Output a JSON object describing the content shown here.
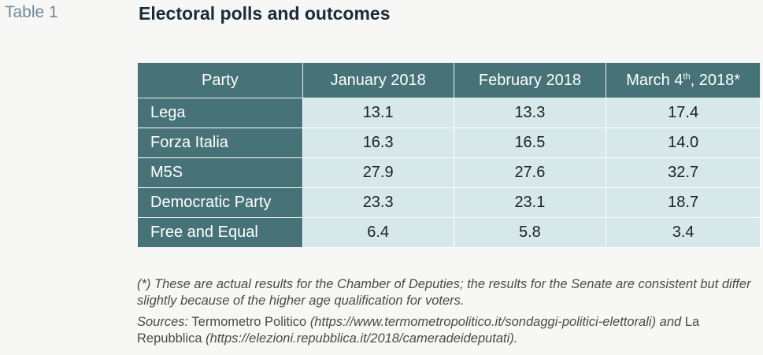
{
  "table_label": "Table 1",
  "title": "Electoral polls and outcomes",
  "table": {
    "headers": {
      "party": "Party",
      "jan": "January 2018",
      "feb": "February 2018",
      "mar_pre": "March 4",
      "mar_sup": "th",
      "mar_post": ", 2018*"
    },
    "rows": [
      {
        "party": "Lega",
        "jan": "13.1",
        "feb": "13.3",
        "mar": "17.4"
      },
      {
        "party": "Forza Italia",
        "jan": "16.3",
        "feb": "16.5",
        "mar": "14.0"
      },
      {
        "party": "M5S",
        "jan": "27.9",
        "feb": "27.6",
        "mar": "32.7"
      },
      {
        "party": "Democratic Party",
        "jan": "23.3",
        "feb": "23.1",
        "mar": "18.7"
      },
      {
        "party": "Free and Equal",
        "jan": "6.4",
        "feb": "5.8",
        "mar": "3.4"
      }
    ]
  },
  "footnote": "(*) These are actual results for the Chamber of Deputies; the results for the Senate are consistent but differ slightly because of the higher age qualification for voters.",
  "sources": {
    "label": "Sources:",
    "source1_name": "Termometro Politico",
    "source1_url": "(https://www.termometropolitico.it/sondaggi-politici-elettorali)",
    "and": "and",
    "source2_name": "La Repubblica",
    "source2_url": "(https://elezioni.repubblica.it/2018/cameradeideputati)."
  }
}
